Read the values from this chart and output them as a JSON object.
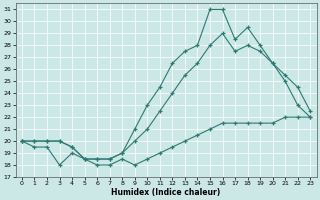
{
  "xlabel": "Humidex (Indice chaleur)",
  "bg_color": "#cce8e6",
  "grid_color": "#b8d8d8",
  "line_color": "#2d7a72",
  "xlim": [
    -0.5,
    23.5
  ],
  "ylim": [
    17,
    31.5
  ],
  "yticks": [
    17,
    18,
    19,
    20,
    21,
    22,
    23,
    24,
    25,
    26,
    27,
    28,
    29,
    30,
    31
  ],
  "xticks": [
    0,
    1,
    2,
    3,
    4,
    5,
    6,
    7,
    8,
    9,
    10,
    11,
    12,
    13,
    14,
    15,
    16,
    17,
    18,
    19,
    20,
    21,
    22,
    23
  ],
  "curve_upper_x": [
    0,
    1,
    2,
    3,
    4,
    5,
    6,
    7,
    8,
    9,
    10,
    11,
    12,
    13,
    14,
    15,
    16,
    17,
    18,
    19,
    20,
    21,
    22,
    23
  ],
  "curve_upper_y": [
    20.0,
    20.0,
    20.0,
    20.0,
    19.5,
    18.5,
    18.5,
    18.5,
    19.0,
    21.0,
    23.0,
    24.5,
    26.5,
    27.5,
    28.0,
    31.0,
    31.0,
    28.5,
    29.5,
    28.0,
    26.5,
    25.0,
    23.0,
    22.0
  ],
  "curve_mid_x": [
    0,
    1,
    2,
    3,
    4,
    5,
    6,
    7,
    8,
    9,
    10,
    11,
    12,
    13,
    14,
    15,
    16,
    17,
    18,
    19,
    20,
    21,
    22,
    23
  ],
  "curve_mid_y": [
    20.0,
    20.0,
    20.0,
    20.0,
    19.5,
    18.5,
    18.5,
    18.5,
    19.0,
    20.0,
    21.0,
    22.5,
    24.0,
    25.5,
    26.5,
    28.0,
    29.0,
    27.5,
    28.0,
    27.5,
    26.5,
    25.5,
    24.5,
    22.5
  ],
  "curve_lower_x": [
    0,
    1,
    2,
    3,
    4,
    5,
    6,
    7,
    8,
    9,
    10,
    11,
    12,
    13,
    14,
    15,
    16,
    17,
    18,
    19,
    20,
    21,
    22,
    23
  ],
  "curve_lower_y": [
    20.0,
    19.5,
    19.5,
    18.0,
    19.0,
    18.5,
    18.0,
    18.0,
    18.5,
    18.0,
    18.5,
    19.0,
    19.5,
    20.0,
    20.5,
    21.0,
    21.5,
    21.5,
    21.5,
    21.5,
    21.5,
    22.0,
    22.0,
    22.0
  ]
}
